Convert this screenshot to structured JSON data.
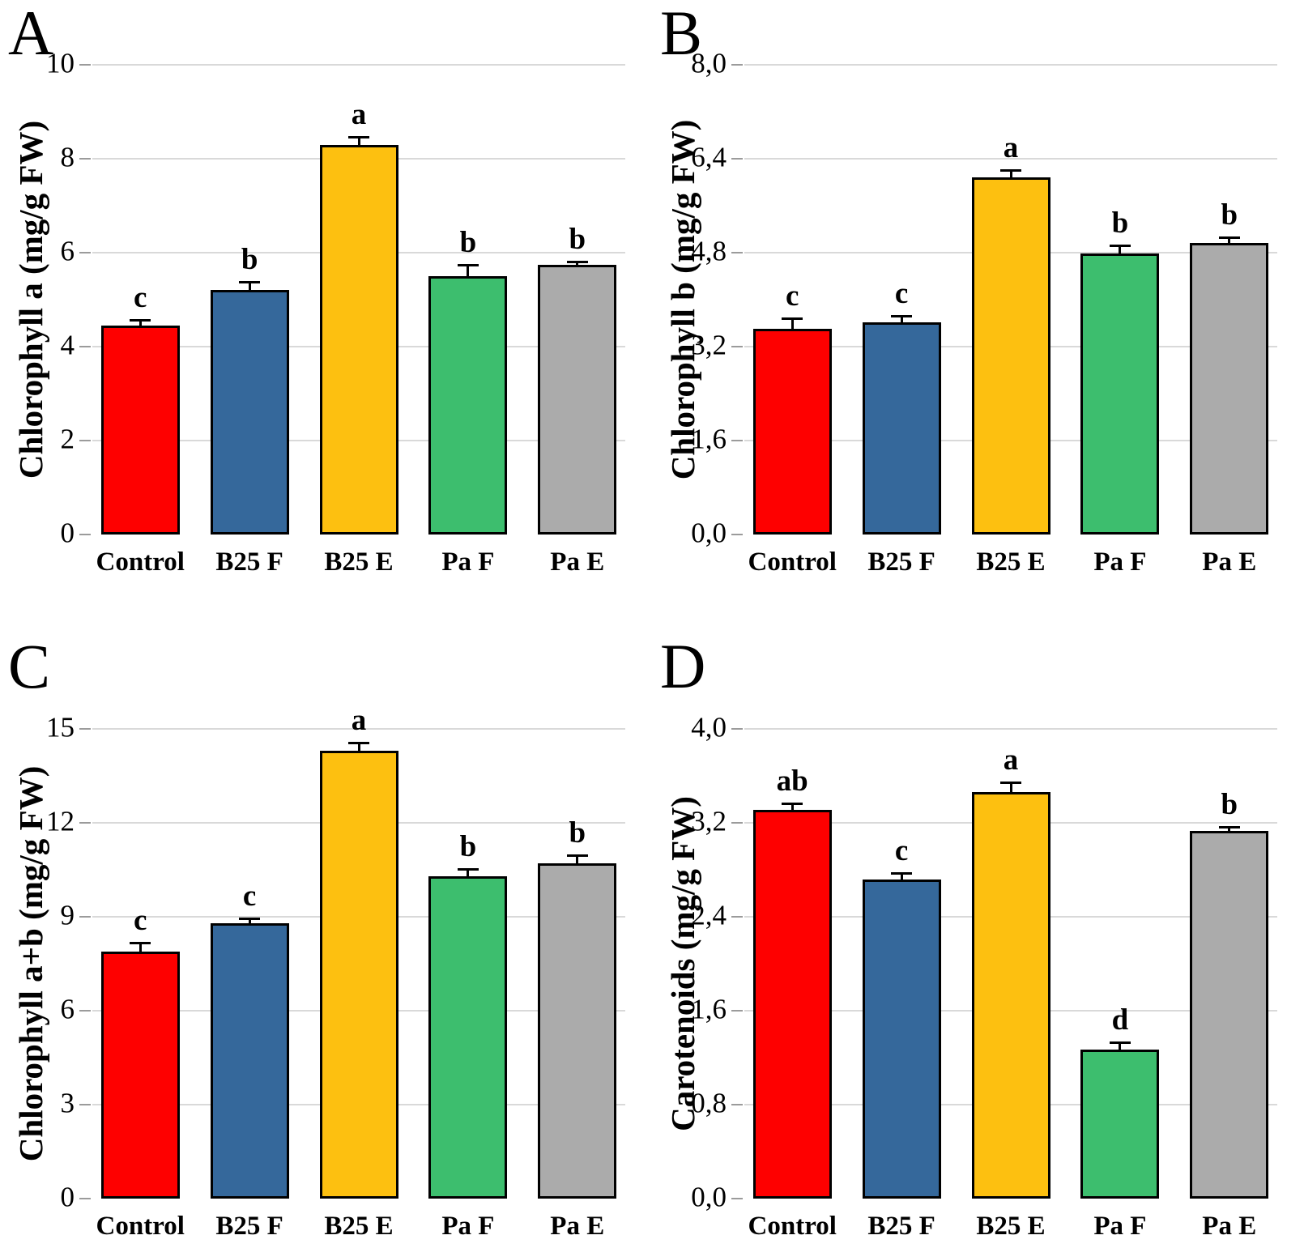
{
  "figure_title": "",
  "palette": {
    "Control": "#fe0000",
    "B25 F": "#35689b",
    "B25 E": "#fdc010",
    "Pa F": "#3dbe6e",
    "Pa E": "#ababab",
    "bar_border": "#000000",
    "gridline": "#d9d9d9",
    "error_bar": "#000000"
  },
  "chart_data": [
    {
      "panel_label": "A",
      "type": "bar",
      "ylabel": "Chlorophyll a (mg/g FW)",
      "xlabel": "",
      "ylim": [
        0,
        10
      ],
      "ytick_values": [
        0,
        2,
        4,
        6,
        8,
        10
      ],
      "ytick_labels": [
        "0",
        "2",
        "4",
        "6",
        "8",
        "10"
      ],
      "grid": "horizontal",
      "categories": [
        "Control",
        "B25 F",
        "B25 E",
        "Pa F",
        "Pa E"
      ],
      "values": [
        4.45,
        5.2,
        8.3,
        5.5,
        5.74
      ],
      "errors": [
        0.08,
        0.15,
        0.13,
        0.2,
        0.04
      ],
      "sig_letters": [
        "c",
        "b",
        "a",
        "b",
        "b"
      ]
    },
    {
      "panel_label": "B",
      "type": "bar",
      "ylabel": "Chlorophyll b (mg/g FW)",
      "xlabel": "",
      "ylim": [
        0,
        8
      ],
      "ytick_values": [
        0,
        1.6,
        3.2,
        4.8,
        6.4,
        8
      ],
      "ytick_labels": [
        "0,0",
        "1,6",
        "3,2",
        "4,8",
        "6,4",
        "8,0"
      ],
      "grid": "horizontal",
      "categories": [
        "Control",
        "B25 F",
        "B25 E",
        "Pa F",
        "Pa E"
      ],
      "values": [
        3.5,
        3.62,
        6.08,
        4.78,
        4.96
      ],
      "errors": [
        0.16,
        0.08,
        0.1,
        0.11,
        0.08
      ],
      "sig_letters": [
        "c",
        "c",
        "a",
        "b",
        "b"
      ]
    },
    {
      "panel_label": "C",
      "type": "bar",
      "ylabel": "Chlorophyll a+b (mg/g FW)",
      "xlabel": "",
      "ylim": [
        0,
        15
      ],
      "ytick_values": [
        0,
        3,
        6,
        9,
        12,
        15
      ],
      "ytick_labels": [
        "0",
        "3",
        "6",
        "9",
        "12",
        "15"
      ],
      "grid": "horizontal",
      "categories": [
        "Control",
        "B25 F",
        "B25 E",
        "Pa F",
        "Pa E"
      ],
      "values": [
        7.9,
        8.8,
        14.3,
        10.3,
        10.72
      ],
      "errors": [
        0.22,
        0.1,
        0.2,
        0.18,
        0.2
      ],
      "sig_letters": [
        "c",
        "c",
        "a",
        "b",
        "b"
      ]
    },
    {
      "panel_label": "D",
      "type": "bar",
      "ylabel": "Carotenoids (mg/g FW)",
      "xlabel": "",
      "ylim": [
        0,
        4
      ],
      "ytick_values": [
        0,
        0.8,
        1.6,
        2.4,
        3.2,
        4
      ],
      "ytick_labels": [
        "0,0",
        "0,8",
        "1,6",
        "2,4",
        "3,2",
        "4,0"
      ],
      "grid": "horizontal",
      "categories": [
        "Control",
        "B25 F",
        "B25 E",
        "Pa F",
        "Pa E"
      ],
      "values": [
        3.31,
        2.72,
        3.46,
        1.27,
        3.13
      ],
      "errors": [
        0.04,
        0.04,
        0.07,
        0.05,
        0.02
      ],
      "sig_letters": [
        "ab",
        "c",
        "a",
        "d",
        "b"
      ]
    }
  ]
}
